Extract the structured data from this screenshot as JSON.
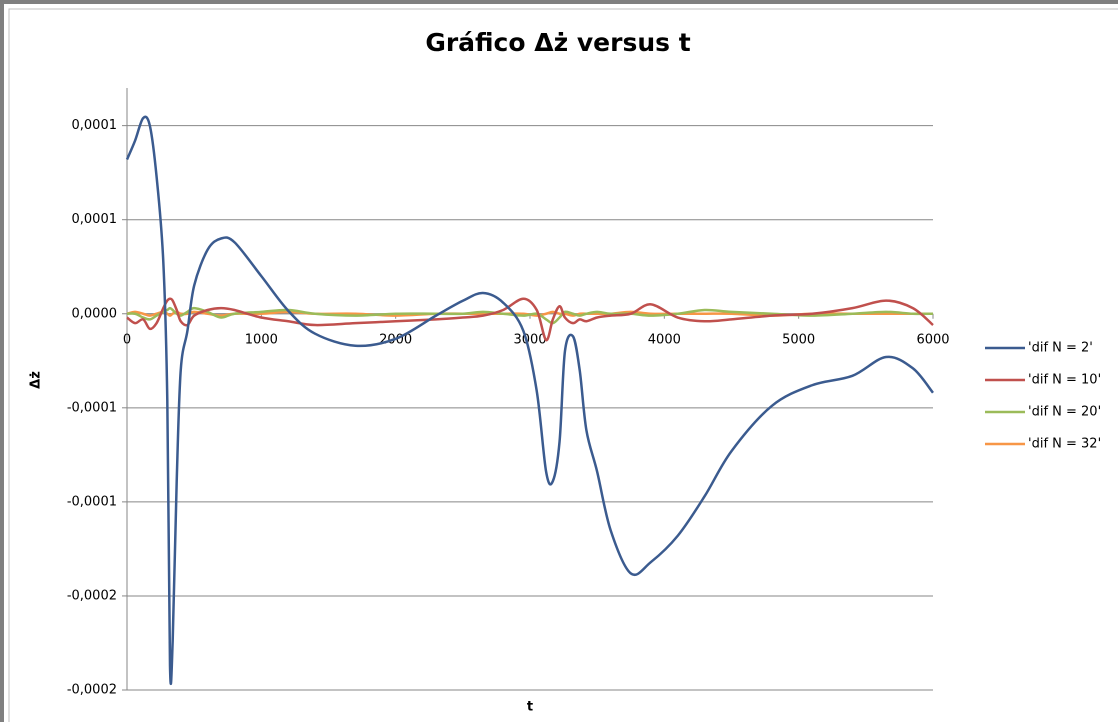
{
  "chart_data": {
    "type": "line",
    "title": "Gráfico Δż versus t",
    "x_label": "t",
    "y_label": "Δż",
    "x": [
      0,
      60,
      120,
      170,
      220,
      270,
      300,
      320,
      340,
      370,
      400,
      450,
      500,
      600,
      700,
      800,
      1000,
      1200,
      1400,
      1700,
      2000,
      2300,
      2500,
      2650,
      2800,
      2950,
      3050,
      3120,
      3170,
      3220,
      3260,
      3320,
      3370,
      3420,
      3500,
      3600,
      3750,
      3900,
      4100,
      4300,
      4500,
      4800,
      5100,
      5400,
      5650,
      5850,
      6000
    ],
    "series": [
      {
        "name": "'dif N = 2'",
        "color": "#3b5b8f",
        "values": [
          8.2e-05,
          9.2e-05,
          0.000104,
          0.0001,
          7.3e-05,
          2.8e-05,
          -4.6e-05,
          -0.000187,
          -0.000174,
          -8.9e-05,
          -3e-05,
          -9e-06,
          1.5e-05,
          3.4e-05,
          4e-05,
          3.8e-05,
          2e-05,
          1.6e-06,
          -1.06e-05,
          -1.7e-05,
          -1.33e-05,
          -1e-06,
          6.9e-06,
          1.1e-05,
          5.9e-06,
          -9e-06,
          -4.1e-05,
          -8.4e-05,
          -8.9e-05,
          -6.8e-05,
          -2e-05,
          -1.2e-05,
          -3e-05,
          -6.2e-05,
          -8.4e-05,
          -0.000115,
          -0.000138,
          -0.000132,
          -0.000118,
          -9.7e-05,
          -7.3e-05,
          -4.9e-05,
          -3.8e-05,
          -3.3e-05,
          -2.3e-05,
          -2.9e-05,
          -4.2e-05
        ]
      },
      {
        "name": "'dif N = 10'",
        "color": "#c0504d",
        "values": [
          -2e-06,
          -5e-06,
          -3e-06,
          -8e-06,
          -5e-06,
          3e-06,
          7e-06,
          8e-06,
          7e-06,
          2e-06,
          -4e-06,
          -6e-06,
          -1e-06,
          2e-06,
          3e-06,
          2e-06,
          -2e-06,
          -4e-06,
          -6e-06,
          -5e-06,
          -4e-06,
          -3e-06,
          -2e-06,
          -1e-06,
          2e-06,
          8e-06,
          2e-06,
          -1.4e-05,
          -3e-06,
          4e-06,
          -2e-06,
          -5e-06,
          -3e-06,
          -4e-06,
          -2e-06,
          -1e-06,
          0,
          5e-06,
          -2e-06,
          -4e-06,
          -3e-06,
          -1e-06,
          0,
          3e-06,
          7e-06,
          3e-06,
          -6e-06
        ]
      },
      {
        "name": "'dif N = 20'",
        "color": "#9bbb59",
        "values": [
          0,
          0,
          -2e-06,
          -3e-06,
          -1e-06,
          1e-06,
          2e-06,
          3e-06,
          2e-06,
          0,
          -1e-06,
          1e-06,
          3e-06,
          1e-06,
          -2e-06,
          0,
          1e-06,
          2e-06,
          0,
          -1e-06,
          0,
          0,
          0,
          1e-06,
          0,
          -1e-06,
          0,
          -3e-06,
          -5e-06,
          -2e-06,
          1e-06,
          0,
          -1e-06,
          0,
          1e-06,
          0,
          0,
          -1e-06,
          0,
          2e-06,
          1e-06,
          0,
          -1e-06,
          0,
          1e-06,
          0,
          0
        ]
      },
      {
        "name": "'dif N = 32'",
        "color": "#f79646",
        "values": [
          0,
          1e-06,
          0,
          -1e-06,
          0,
          1e-06,
          0,
          -1e-06,
          0,
          1e-06,
          0,
          0,
          1e-06,
          0,
          -1e-06,
          0,
          0,
          1e-06,
          0,
          0,
          -1e-06,
          0,
          0,
          0,
          0,
          0,
          -1e-06,
          0,
          1e-06,
          0,
          0,
          -1e-06,
          0,
          0,
          0,
          0,
          1e-06,
          0,
          0,
          0,
          0,
          -1e-06,
          0,
          0,
          0,
          0,
          0
        ]
      }
    ],
    "xlim": [
      0,
      6000
    ],
    "xticks": [
      0,
      1000,
      2000,
      3000,
      4000,
      5000,
      6000
    ],
    "ylim": [
      -0.0002,
      0.00012
    ],
    "yticks": [
      {
        "value": 0.0001,
        "label": "0,0001"
      },
      {
        "value": 5e-05,
        "label": "0,0001"
      },
      {
        "value": 0,
        "label": "0,0000"
      },
      {
        "value": -5e-05,
        "label": "-0,0001"
      },
      {
        "value": -0.0001,
        "label": "-0,0001"
      },
      {
        "value": -0.00015,
        "label": "-0,0002"
      },
      {
        "value": -0.0002,
        "label": "-0,0002"
      }
    ],
    "grid": true,
    "legend": "right"
  }
}
